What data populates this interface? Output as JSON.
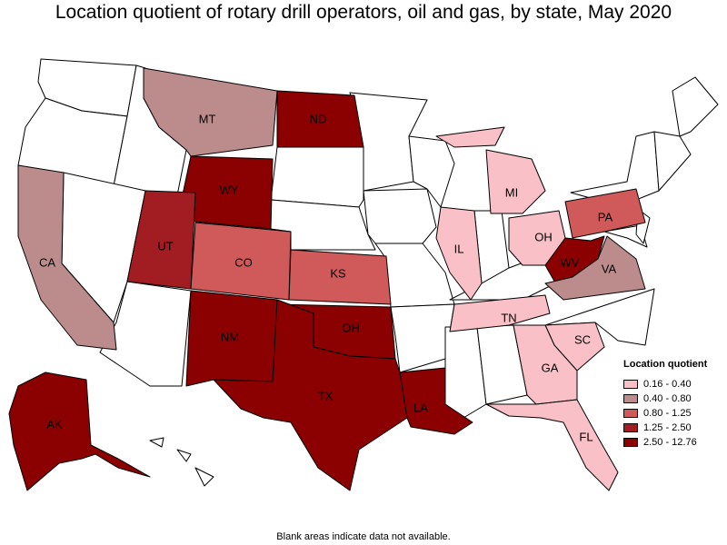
{
  "title": "Location quotient of rotary drill operators, oil and gas, by state, May 2020",
  "footnote": "Blank areas indicate data not available.",
  "legend": {
    "title": "Location quotient",
    "items": [
      {
        "label": "0.16 - 0.40",
        "color": "#f9c0c7"
      },
      {
        "label": "0.40 - 0.80",
        "color": "#bc8c8c"
      },
      {
        "label": "0.80 - 1.25",
        "color": "#d05a5a"
      },
      {
        "label": "1.25 - 2.50",
        "color": "#a21d21"
      },
      {
        "label": "2.50 - 12.76",
        "color": "#8b0000"
      }
    ]
  },
  "blank_color": "#ffffff",
  "states": [
    {
      "abbr": "AK",
      "class": 4
    },
    {
      "abbr": "CA",
      "class": 1
    },
    {
      "abbr": "CO",
      "class": 2
    },
    {
      "abbr": "FL",
      "class": 0
    },
    {
      "abbr": "GA",
      "class": 0
    },
    {
      "abbr": "IL",
      "class": 0
    },
    {
      "abbr": "KS",
      "class": 2
    },
    {
      "abbr": "LA",
      "class": 4
    },
    {
      "abbr": "MI",
      "class": 0
    },
    {
      "abbr": "MT",
      "class": 1
    },
    {
      "abbr": "ND",
      "class": 4
    },
    {
      "abbr": "NM",
      "class": 4
    },
    {
      "abbr": "OH",
      "class": 0
    },
    {
      "abbr": "OK",
      "class": 4
    },
    {
      "abbr": "PA",
      "class": 2
    },
    {
      "abbr": "SC",
      "class": 0
    },
    {
      "abbr": "TN",
      "class": 0
    },
    {
      "abbr": "TX",
      "class": 4
    },
    {
      "abbr": "UT",
      "class": 3
    },
    {
      "abbr": "VA",
      "class": 1
    },
    {
      "abbr": "WV",
      "class": 4
    },
    {
      "abbr": "WY",
      "class": 4
    }
  ]
}
